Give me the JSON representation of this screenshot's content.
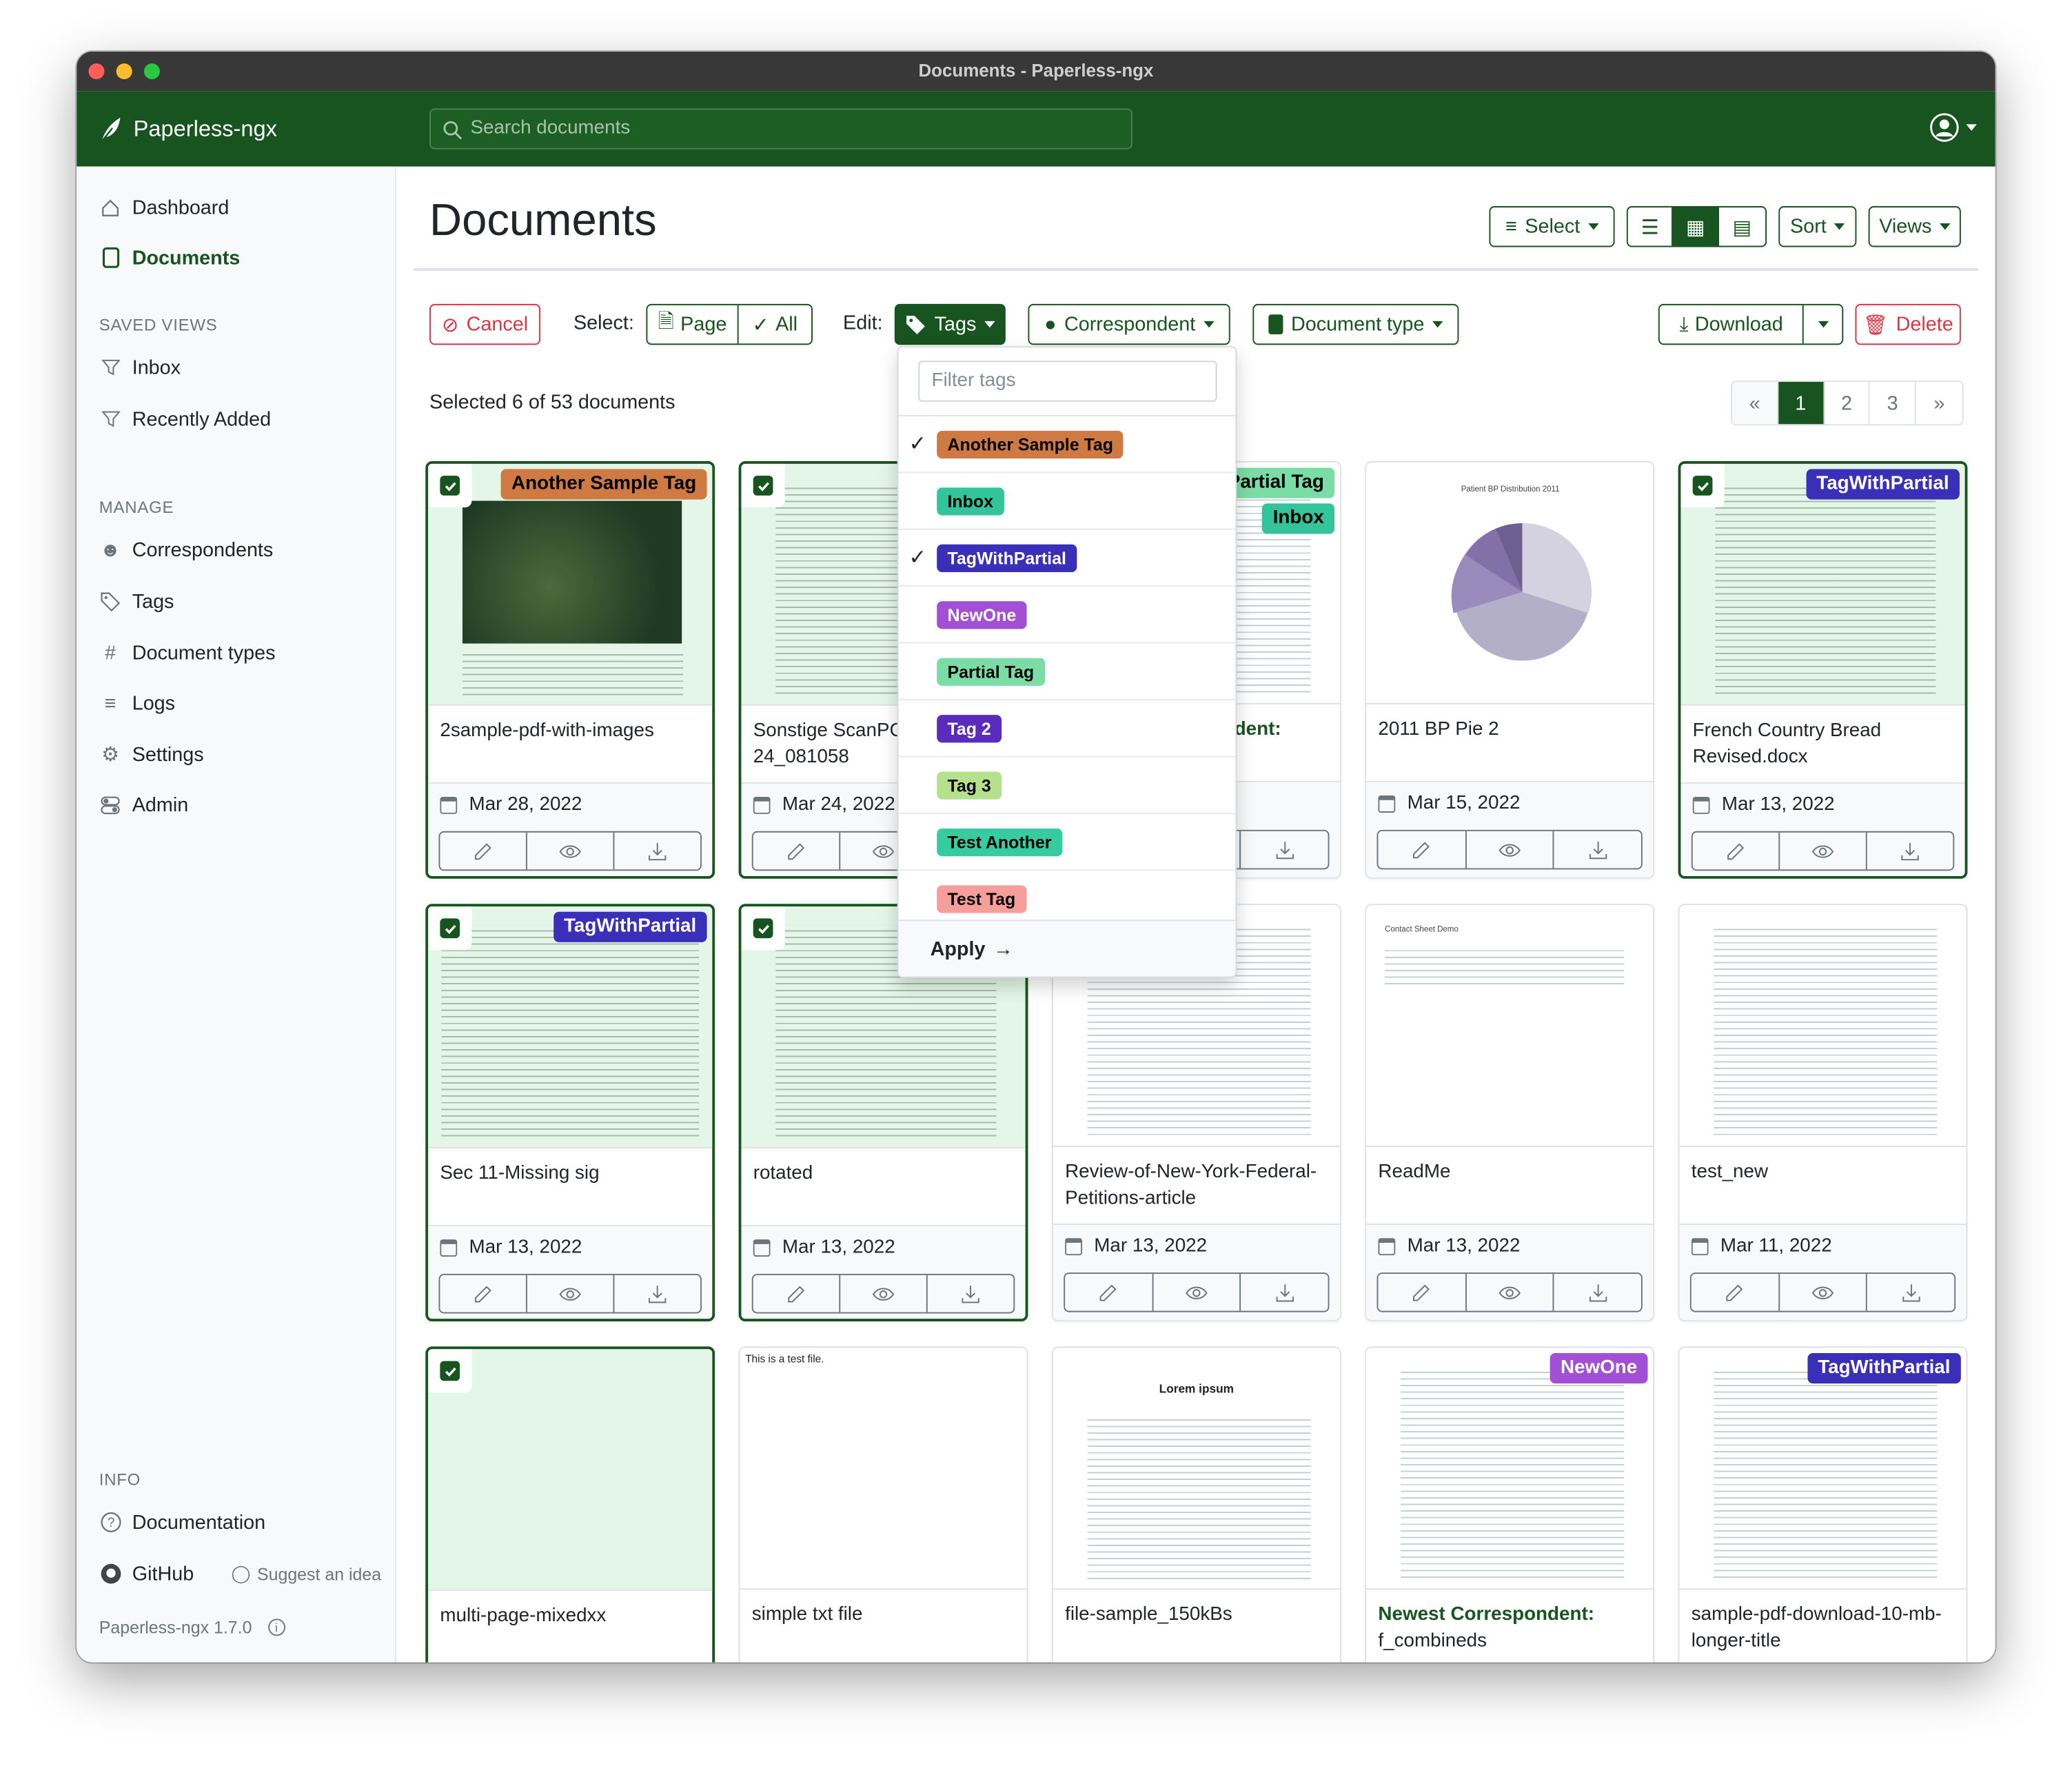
{
  "window": {
    "title": "Documents - Paperless-ngx"
  },
  "header": {
    "brand": "Paperless-ngx",
    "search_placeholder": "Search documents",
    "user_icon": "user-circle-icon"
  },
  "sidebar": {
    "top": [
      {
        "label": "Dashboard",
        "icon": "house-icon"
      },
      {
        "label": "Documents",
        "icon": "file-icon",
        "active": true
      }
    ],
    "saved_views_heading": "SAVED VIEWS",
    "saved_views": [
      {
        "label": "Inbox",
        "icon": "funnel-icon"
      },
      {
        "label": "Recently Added",
        "icon": "funnel-icon"
      }
    ],
    "manage_heading": "MANAGE",
    "manage": [
      {
        "label": "Correspondents",
        "icon": "person-icon"
      },
      {
        "label": "Tags",
        "icon": "tags-icon"
      },
      {
        "label": "Document types",
        "icon": "hash-icon"
      },
      {
        "label": "Logs",
        "icon": "text-lines-icon"
      },
      {
        "label": "Settings",
        "icon": "gear-icon"
      },
      {
        "label": "Admin",
        "icon": "toggles-icon"
      }
    ],
    "info_heading": "INFO",
    "documentation": "Documentation",
    "github": "GitHub",
    "suggest": "Suggest an idea",
    "version": "Paperless-ngx 1.7.0"
  },
  "page": {
    "title": "Documents"
  },
  "toolbar": {
    "select": "Select",
    "sort": "Sort",
    "views": "Views",
    "view_modes": [
      "list",
      "small-cards",
      "large-cards"
    ],
    "active_view": "small-cards"
  },
  "bulk": {
    "cancel": "Cancel",
    "select_label": "Select:",
    "page": "Page",
    "all": "All",
    "edit_label": "Edit:",
    "tags": "Tags",
    "correspondent": "Correspondent",
    "document_type": "Document type",
    "download": "Download",
    "delete": "Delete"
  },
  "status": {
    "selected_text": "Selected 6 of 53 documents"
  },
  "pagination": {
    "prev": "«",
    "pages": [
      "1",
      "2",
      "3"
    ],
    "current": "1",
    "next": "»"
  },
  "colors": {
    "primary": "#17541f",
    "danger": "#dc3545",
    "selected_bg": "#e3f6e7"
  },
  "tag_styles": {
    "Another Sample Tag": {
      "bg": "#cf7a42",
      "fg": "#000000"
    },
    "Inbox": {
      "bg": "#33c49c",
      "fg": "#000000"
    },
    "TagWithPartial": {
      "bg": "#3a2fb8",
      "fg": "#ffffff"
    },
    "NewOne": {
      "bg": "#a24fd6",
      "fg": "#ffffff"
    },
    "Partial Tag": {
      "bg": "#7bdca6",
      "fg": "#000000"
    },
    "Tag 2": {
      "bg": "#5a2bbd",
      "fg": "#ffffff"
    },
    "Tag 3": {
      "bg": "#b5e08c",
      "fg": "#000000"
    },
    "Test Another": {
      "bg": "#36cc9f",
      "fg": "#000000"
    },
    "Test Tag": {
      "bg": "#f79d9a",
      "fg": "#000000"
    }
  },
  "tags_dropdown": {
    "filter_placeholder": "Filter tags",
    "items": [
      {
        "name": "Another Sample Tag",
        "checked": true
      },
      {
        "name": "Inbox",
        "checked": false
      },
      {
        "name": "TagWithPartial",
        "checked": true
      },
      {
        "name": "NewOne",
        "checked": false
      },
      {
        "name": "Partial Tag",
        "checked": false
      },
      {
        "name": "Tag 2",
        "checked": false
      },
      {
        "name": "Tag 3",
        "checked": false
      },
      {
        "name": "Test Another",
        "checked": false
      },
      {
        "name": "Test Tag",
        "checked": false
      }
    ],
    "apply": "Apply"
  },
  "documents": [
    {
      "title": "2sample-pdf-with-images",
      "date": "Mar 28, 2022",
      "selected": true,
      "tags": [
        "Another Sample Tag"
      ]
    },
    {
      "title": "Sonstige ScanPC2 24_081058",
      "date": "Mar 24, 2022",
      "selected": true,
      "tags": []
    },
    {
      "correspondent": "Newest Correspondent:",
      "title": "",
      "date": "",
      "selected": false,
      "tags": [
        "Partial Tag",
        "Inbox"
      ]
    },
    {
      "title": "2011 BP Pie 2",
      "date": "Mar 15, 2022",
      "selected": false,
      "tags": []
    },
    {
      "title": "French Country Bread Revised.docx",
      "date": "Mar 13, 2022",
      "selected": true,
      "tags": [
        "TagWithPartial"
      ]
    },
    {
      "title": "Sec 11-Missing sig",
      "date": "Mar 13, 2022",
      "selected": true,
      "tags": [
        "TagWithPartial"
      ]
    },
    {
      "title": "rotated",
      "date": "Mar 13, 2022",
      "selected": true,
      "tags": []
    },
    {
      "title": "Review-of-New-York-Federal-Petitions-article",
      "date": "Mar 13, 2022",
      "selected": false,
      "tags": []
    },
    {
      "title": "ReadMe",
      "date": "Mar 13, 2022",
      "selected": false,
      "tags": []
    },
    {
      "title": "test_new",
      "date": "Mar 11, 2022",
      "selected": false,
      "tags": []
    },
    {
      "title": "multi-page-mixedxx",
      "date": "",
      "selected": true,
      "tags": []
    },
    {
      "title": "simple txt file",
      "date": "",
      "selected": false,
      "tags": []
    },
    {
      "title": "file-sample_150kBs",
      "date": "",
      "selected": false,
      "tags": []
    },
    {
      "correspondent": "Newest Correspondent:",
      "title": "f_combineds",
      "date": "",
      "selected": false,
      "tags": [
        "NewOne"
      ]
    },
    {
      "title": "sample-pdf-download-10-mb-longer-title",
      "date": "",
      "selected": false,
      "tags": [
        "TagWithPartial"
      ]
    }
  ],
  "thumbnail_text": {
    "simple_txt": "This is a test file.",
    "pie_title": "Patient BP Distribution 2011",
    "lorem_title": "Lorem ipsum",
    "contact_sheet": "Contact Sheet Demo"
  }
}
